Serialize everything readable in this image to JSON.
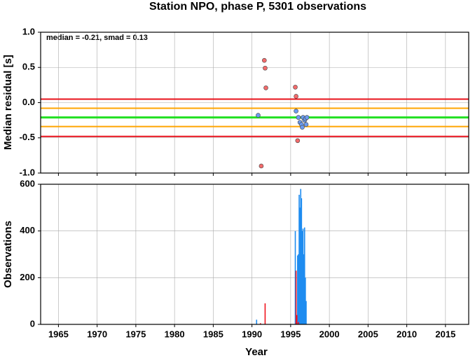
{
  "chart_data": [
    {
      "type": "scatter",
      "title": "Station NPO, phase P, 5301 observations",
      "ylabel": "Median residual [s]",
      "annotation": "median = -0.21, smad = 0.13",
      "xlim": [
        1962.7,
        2018
      ],
      "xticks": [
        1965,
        1970,
        1975,
        1980,
        1985,
        1990,
        1995,
        2000,
        2005,
        2010,
        2015
      ],
      "ylim": [
        -1,
        1
      ],
      "yticks": [
        {
          "value": 1,
          "label": "1.0"
        },
        0.5,
        {
          "value": 0,
          "label": "0.0"
        },
        -0.5,
        {
          "value": -1,
          "label": "-1.0"
        }
      ],
      "grid": true,
      "hlines": [
        {
          "value": 0.05,
          "color": "#e8101a"
        },
        {
          "value": -0.08,
          "color": "#ffa500"
        },
        {
          "value": -0.21,
          "color": "#22e022"
        },
        {
          "value": -0.34,
          "color": "#ffa500"
        },
        {
          "value": -0.48,
          "color": "#e8101a"
        }
      ],
      "series": [
        {
          "color": "#f26b6b",
          "x": [
            1991.6,
            1991.7,
            1991.8,
            1995.6,
            1995.7,
            1995.9,
            1991.2
          ],
          "values": [
            0.6,
            0.49,
            0.21,
            0.22,
            0.09,
            -0.54,
            -0.9
          ]
        },
        {
          "color": "#6b9bf2",
          "x": [
            1990.8,
            1995.7,
            1996.0,
            1996.2,
            1996.4,
            1996.5,
            1996.6,
            1996.8,
            1996.9,
            1997.0,
            1997.1
          ],
          "values": [
            -0.18,
            -0.12,
            -0.21,
            -0.28,
            -0.31,
            -0.35,
            -0.21,
            -0.25,
            -0.23,
            -0.31,
            -0.21
          ]
        }
      ]
    },
    {
      "type": "bar",
      "ylabel": "Observations",
      "xlabel": "Year",
      "xlim": [
        1962.7,
        2018
      ],
      "xticks": [
        1965,
        1970,
        1975,
        1980,
        1985,
        1990,
        1995,
        2000,
        2005,
        2010,
        2015
      ],
      "ylim": [
        0,
        600
      ],
      "yticks": [
        0,
        200,
        400,
        600
      ],
      "grid": true,
      "series": [
        {
          "color": "#1e8cf0",
          "x": [
            1990.6,
            1995.6,
            1995.7,
            1995.9,
            1996.0,
            1996.1,
            1996.2,
            1996.3,
            1996.4,
            1996.5,
            1996.6,
            1996.7,
            1996.8,
            1996.9,
            1997.0
          ],
          "values": [
            20,
            400,
            40,
            295,
            300,
            555,
            500,
            580,
            540,
            400,
            410,
            300,
            415,
            200,
            100
          ]
        },
        {
          "color": "#f0141e",
          "x": [
            1991.1,
            1991.7,
            1995.7,
            1995.8,
            1996.0
          ],
          "values": [
            5,
            90,
            230,
            40,
            10
          ]
        }
      ]
    }
  ]
}
